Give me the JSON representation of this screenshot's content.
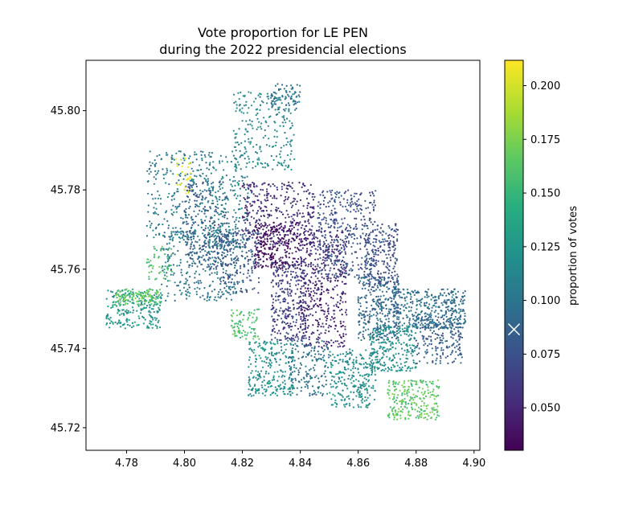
{
  "chart_data": {
    "type": "scatter",
    "title_lines": [
      "Vote proportion for LE PEN",
      "during the 2022 presidencial elections"
    ],
    "xlabel": "",
    "ylabel": "",
    "xlim": [
      4.766,
      4.902
    ],
    "ylim": [
      45.7143,
      45.8127
    ],
    "x_ticks": [
      4.78,
      4.8,
      4.82,
      4.84,
      4.86,
      4.88,
      4.9
    ],
    "x_tick_labels": [
      "4.78",
      "4.80",
      "4.82",
      "4.84",
      "4.86",
      "4.88",
      "4.90"
    ],
    "y_ticks": [
      45.72,
      45.74,
      45.76,
      45.78,
      45.8
    ],
    "y_tick_labels": [
      "45.72",
      "45.74",
      "45.76",
      "45.78",
      "45.80"
    ],
    "colorbar": {
      "label": "proportion of votes",
      "colormap": "viridis",
      "range": [
        0.0302,
        0.2118
      ],
      "ticks": [
        0.05,
        0.075,
        0.1,
        0.125,
        0.15,
        0.175,
        0.2
      ],
      "tick_labels": [
        "0.050",
        "0.075",
        "0.100",
        "0.125",
        "0.150",
        "0.175",
        "0.200"
      ],
      "marker_value": 0.0865
    },
    "grid": false,
    "regions": [
      {
        "x": [
          4.773,
          4.792
        ],
        "y": [
          45.745,
          45.755
        ],
        "v": 0.125,
        "n": 220
      },
      {
        "x": [
          4.776,
          4.792
        ],
        "y": [
          45.751,
          45.755
        ],
        "v": 0.165,
        "n": 120
      },
      {
        "x": [
          4.787,
          4.796
        ],
        "y": [
          45.757,
          45.766
        ],
        "v": 0.16,
        "n": 60
      },
      {
        "x": [
          4.787,
          4.81
        ],
        "y": [
          45.768,
          45.79
        ],
        "v": 0.105,
        "n": 260
      },
      {
        "x": [
          4.797,
          4.803
        ],
        "y": [
          45.779,
          45.788
        ],
        "v": 0.205,
        "n": 30
      },
      {
        "x": [
          4.792,
          4.818
        ],
        "y": [
          45.752,
          45.77
        ],
        "v": 0.1,
        "n": 320
      },
      {
        "x": [
          4.8,
          4.815
        ],
        "y": [
          45.76,
          45.782
        ],
        "v": 0.08,
        "n": 220
      },
      {
        "x": [
          4.808,
          4.822
        ],
        "y": [
          45.765,
          45.79
        ],
        "v": 0.11,
        "n": 200
      },
      {
        "x": [
          4.817,
          4.838
        ],
        "y": [
          45.785,
          45.805
        ],
        "v": 0.115,
        "n": 220
      },
      {
        "x": [
          4.83,
          4.84
        ],
        "y": [
          45.8,
          45.807
        ],
        "v": 0.1,
        "n": 80
      },
      {
        "x": [
          4.82,
          4.845
        ],
        "y": [
          45.766,
          45.782
        ],
        "v": 0.055,
        "n": 360
      },
      {
        "x": [
          4.824,
          4.84
        ],
        "y": [
          45.76,
          45.772
        ],
        "v": 0.035,
        "n": 260
      },
      {
        "x": [
          4.812,
          4.826
        ],
        "y": [
          45.754,
          45.77
        ],
        "v": 0.08,
        "n": 200
      },
      {
        "x": [
          4.83,
          4.842
        ],
        "y": [
          45.742,
          45.762
        ],
        "v": 0.065,
        "n": 300
      },
      {
        "x": [
          4.84,
          4.856
        ],
        "y": [
          45.74,
          45.77
        ],
        "v": 0.05,
        "n": 460
      },
      {
        "x": [
          4.846,
          4.866
        ],
        "y": [
          45.758,
          45.78
        ],
        "v": 0.075,
        "n": 380
      },
      {
        "x": [
          4.862,
          4.874
        ],
        "y": [
          45.756,
          45.772
        ],
        "v": 0.075,
        "n": 200
      },
      {
        "x": [
          4.86,
          4.874
        ],
        "y": [
          45.742,
          45.758
        ],
        "v": 0.09,
        "n": 300
      },
      {
        "x": [
          4.872,
          4.897
        ],
        "y": [
          45.745,
          45.755
        ],
        "v": 0.095,
        "n": 400
      },
      {
        "x": [
          4.864,
          4.88
        ],
        "y": [
          45.734,
          45.746
        ],
        "v": 0.12,
        "n": 260
      },
      {
        "x": [
          4.85,
          4.866
        ],
        "y": [
          45.725,
          45.74
        ],
        "v": 0.12,
        "n": 260
      },
      {
        "x": [
          4.87,
          4.888
        ],
        "y": [
          45.722,
          45.732
        ],
        "v": 0.165,
        "n": 240
      },
      {
        "x": [
          4.822,
          4.838
        ],
        "y": [
          45.728,
          45.742
        ],
        "v": 0.12,
        "n": 240
      },
      {
        "x": [
          4.836,
          4.85
        ],
        "y": [
          45.728,
          45.742
        ],
        "v": 0.1,
        "n": 160
      },
      {
        "x": [
          4.816,
          4.826
        ],
        "y": [
          45.742,
          45.75
        ],
        "v": 0.16,
        "n": 80
      },
      {
        "x": [
          4.88,
          4.896
        ],
        "y": [
          45.736,
          45.748
        ],
        "v": 0.085,
        "n": 180
      }
    ]
  }
}
